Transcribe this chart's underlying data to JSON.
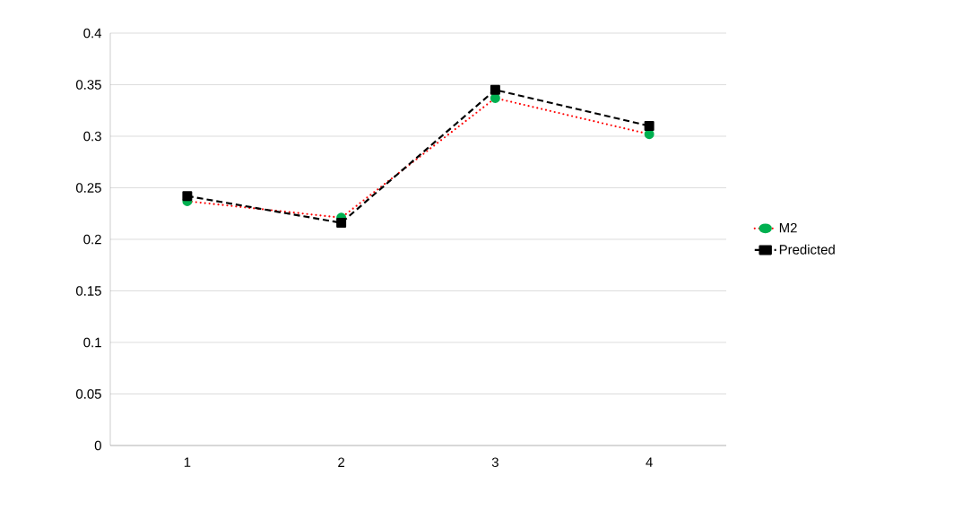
{
  "chart_data": {
    "type": "line",
    "categories": [
      "1",
      "2",
      "3",
      "4"
    ],
    "series": [
      {
        "name": "M2",
        "color": "#ff0000",
        "marker": "circle",
        "line_style": "dotted",
        "values": [
          0.237,
          0.221,
          0.337,
          0.302
        ]
      },
      {
        "name": "Predicted",
        "color": "#000000",
        "marker": "square",
        "line_style": "dashed",
        "values": [
          0.242,
          0.216,
          0.345,
          0.31
        ]
      }
    ],
    "ylim": [
      0,
      0.4
    ],
    "yticks": [
      0,
      0.05,
      0.1,
      0.15,
      0.2,
      0.25,
      0.3,
      0.35,
      0.4
    ],
    "grid": "y",
    "legend": "right"
  }
}
